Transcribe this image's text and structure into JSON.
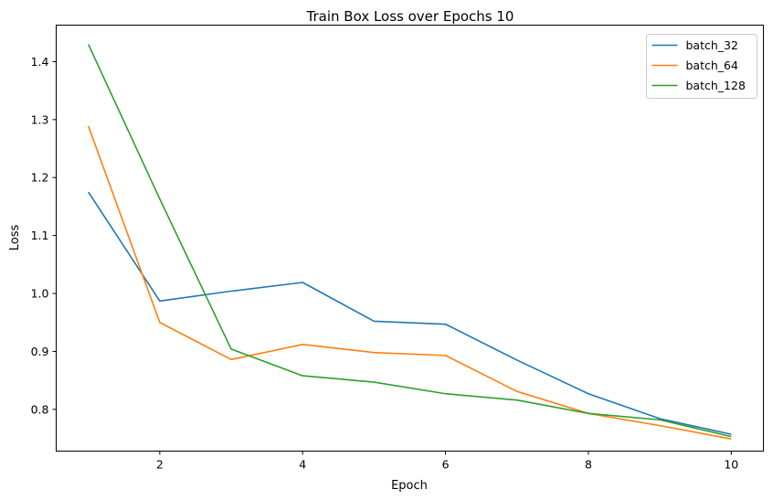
{
  "chart_data": {
    "type": "line",
    "title": "Train Box Loss over Epochs 10",
    "xlabel": "Epoch",
    "ylabel": "Loss",
    "x": [
      1,
      2,
      3,
      4,
      5,
      6,
      7,
      8,
      9,
      10
    ],
    "xlim": [
      0.55,
      10.45
    ],
    "ylim": [
      0.728,
      1.463
    ],
    "xticks": [
      2,
      4,
      6,
      8,
      10
    ],
    "yticks": [
      0.8,
      0.9,
      1.0,
      1.1,
      1.2,
      1.3,
      1.4
    ],
    "ytick_labels": [
      "0.8",
      "0.9",
      "1.0",
      "1.1",
      "1.2",
      "1.3",
      "1.4"
    ],
    "grid": false,
    "legend_position": "top-right",
    "series": [
      {
        "name": "batch_32",
        "color": "#1f77b4",
        "values": [
          1.175,
          0.987,
          1.004,
          1.019,
          0.952,
          0.947,
          0.885,
          0.827,
          0.784,
          0.757
        ]
      },
      {
        "name": "batch_64",
        "color": "#ff7f0e",
        "values": [
          1.289,
          0.95,
          0.886,
          0.912,
          0.898,
          0.893,
          0.831,
          0.793,
          0.772,
          0.749
        ]
      },
      {
        "name": "batch_128",
        "color": "#2ca02c",
        "values": [
          1.43,
          1.163,
          0.904,
          0.858,
          0.847,
          0.827,
          0.816,
          0.793,
          0.782,
          0.753
        ]
      }
    ]
  }
}
